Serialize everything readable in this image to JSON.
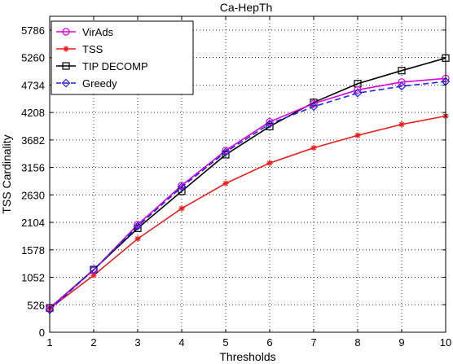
{
  "chart_data": {
    "type": "line",
    "title": "Ca-HepTh",
    "xlabel": "Thresholds",
    "ylabel": "TSS Cardinality",
    "x": [
      1,
      2,
      3,
      4,
      5,
      6,
      7,
      8,
      9,
      10
    ],
    "xlim": [
      1,
      10
    ],
    "ylim": [
      0,
      6050
    ],
    "xticks": [
      1,
      2,
      3,
      4,
      5,
      6,
      7,
      8,
      9,
      10
    ],
    "yticks": [
      0,
      526,
      1052,
      1578,
      2104,
      2630,
      3156,
      3682,
      4208,
      4734,
      5260,
      5786
    ],
    "grid": true,
    "legend_position": "top-left",
    "series": [
      {
        "name": "VirAds",
        "color": "#e000e0",
        "marker": "circle",
        "line_style": "solid",
        "values": [
          460,
          1190,
          2060,
          2810,
          3480,
          4030,
          4380,
          4640,
          4790,
          4860
        ]
      },
      {
        "name": "TSS",
        "color": "#ee1c1c",
        "marker": "star",
        "line_style": "solid",
        "values": [
          455,
          1090,
          1790,
          2370,
          2850,
          3240,
          3530,
          3770,
          3980,
          4140
        ]
      },
      {
        "name": "TIP DECOMP",
        "color": "#000000",
        "marker": "square",
        "line_style": "solid",
        "values": [
          465,
          1200,
          1990,
          2700,
          3400,
          3940,
          4400,
          4760,
          5010,
          5250
        ]
      },
      {
        "name": "Greedy",
        "color": "#2222ee",
        "marker": "diamond",
        "line_style": "dashed",
        "values": [
          430,
          1200,
          2030,
          2780,
          3450,
          3990,
          4320,
          4580,
          4710,
          4800
        ]
      }
    ]
  }
}
